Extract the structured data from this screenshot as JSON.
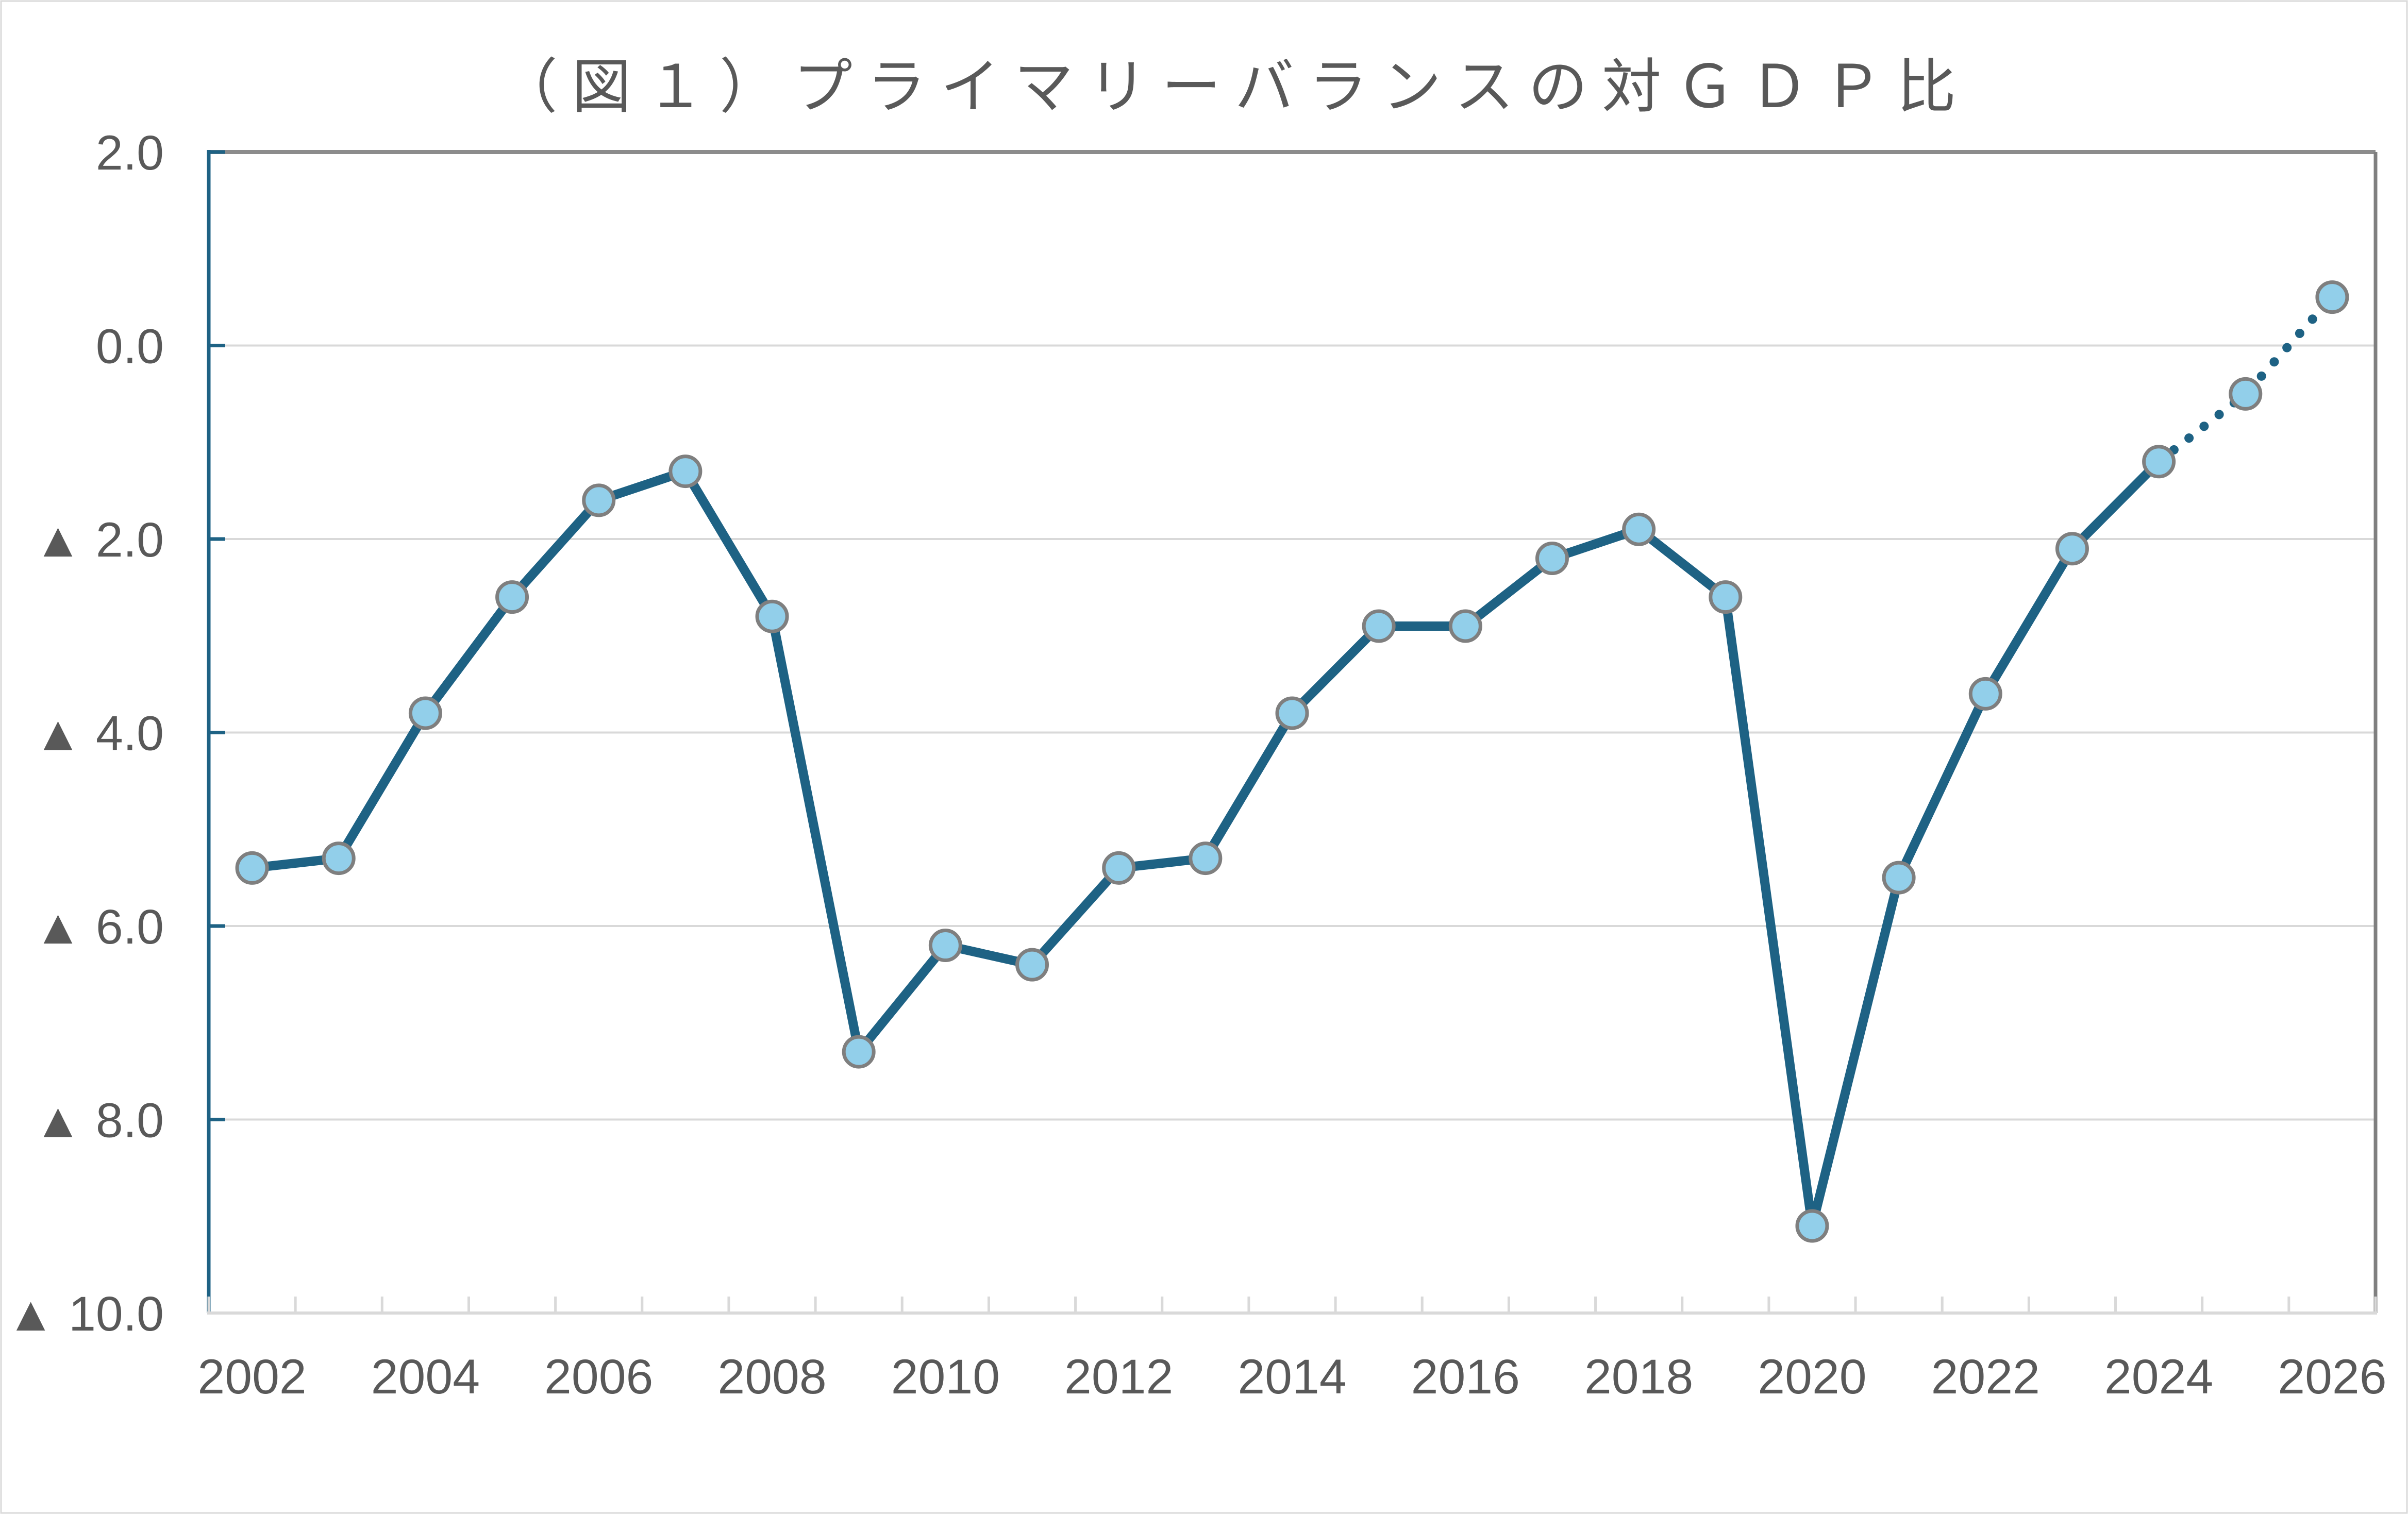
{
  "chart": {
    "title": "（図１）プライマリーバランスの対ＧＤＰ比"
  },
  "chart_data": {
    "type": "line",
    "title": "（図１）プライマリーバランスの対ＧＤＰ比",
    "xlabel": "",
    "ylabel": "",
    "x": [
      2002,
      2003,
      2004,
      2005,
      2006,
      2007,
      2008,
      2009,
      2010,
      2011,
      2012,
      2013,
      2014,
      2015,
      2016,
      2017,
      2018,
      2019,
      2020,
      2021,
      2022,
      2023,
      2024,
      2025,
      2026
    ],
    "series": [
      {
        "name": "プライマリーバランスの対ＧＤＰ比",
        "values": [
          -5.4,
          -5.3,
          -3.8,
          -2.6,
          -1.6,
          -1.3,
          -2.8,
          -7.3,
          -6.2,
          -6.4,
          -5.4,
          -5.3,
          -3.8,
          -2.9,
          -2.9,
          -2.2,
          -1.9,
          -2.6,
          -9.1,
          -5.5,
          -3.6,
          -2.1,
          -1.2,
          -0.5,
          0.5
        ],
        "solid_until_x": 2024,
        "projection_style": "dotted"
      }
    ],
    "ylim": [
      -10,
      2
    ],
    "xlim_categories": 25,
    "grid": true,
    "legend_position": "none",
    "ytick_values": [
      2,
      0,
      -2,
      -4,
      -6,
      -8,
      -10
    ],
    "ytick_labels": [
      "2.0",
      "0.0",
      "▲ 2.0",
      "▲ 4.0",
      "▲ 6.0",
      "▲ 8.0",
      "▲ 10.0"
    ],
    "xtick_labels": [
      "2002",
      "2004",
      "2006",
      "2008",
      "2010",
      "2012",
      "2014",
      "2016",
      "2018",
      "2020",
      "2022",
      "2024",
      "2026"
    ],
    "colors": {
      "line": "#1E6284",
      "marker_fill": "#92CFEA",
      "marker_stroke": "#7F7F7F",
      "gridline": "#D9D9D9",
      "x_axis": "#D9D9D9",
      "y_axis": "#1E6284",
      "plot_border_top": "#8C8C8C",
      "plot_border_right": "#7F7F7F",
      "text": "#595959",
      "outer_border": "#D9D9D9",
      "background": "#FFFFFF"
    }
  }
}
